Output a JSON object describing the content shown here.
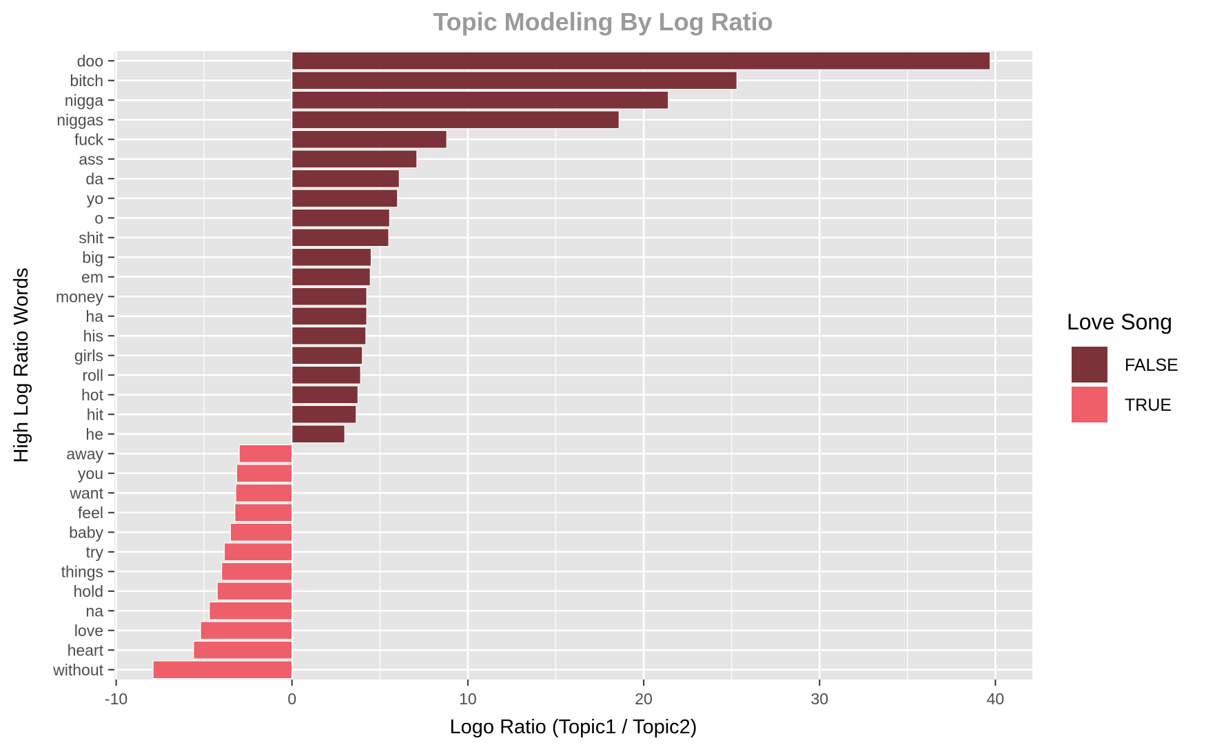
{
  "chart_data": {
    "type": "bar",
    "orientation": "horizontal",
    "title": "Topic Modeling By Log Ratio",
    "xlabel": "Logo Ratio (Topic1 / Topic2)",
    "ylabel": "High Log Ratio Words",
    "xlim": [
      -10.1,
      42.1
    ],
    "xticks": [
      -10,
      0,
      10,
      20,
      30,
      40
    ],
    "xtick_labels": [
      "-10",
      "0",
      "10",
      "20",
      "30",
      "40"
    ],
    "grid": true,
    "legend": {
      "title": "Love Song",
      "position": "right",
      "entries": [
        {
          "label": "FALSE",
          "color": "#7b3339"
        },
        {
          "label": "TRUE",
          "color": "#ee5f69"
        }
      ]
    },
    "categories": [
      "doo",
      "bitch",
      "nigga",
      "niggas",
      "fuck",
      "ass",
      "da",
      "yo",
      "o",
      "shit",
      "big",
      "em",
      "money",
      "ha",
      "his",
      "girls",
      "roll",
      "hot",
      "hit",
      "he",
      "away",
      "you",
      "want",
      "feel",
      "baby",
      "try",
      "things",
      "hold",
      "na",
      "love",
      "heart",
      "without"
    ],
    "values": [
      39.7,
      25.3,
      21.4,
      18.6,
      8.8,
      7.1,
      6.1,
      6.0,
      5.55,
      5.5,
      4.5,
      4.45,
      4.25,
      4.25,
      4.2,
      4.0,
      3.9,
      3.75,
      3.65,
      3.0,
      -3.0,
      -3.15,
      -3.2,
      -3.25,
      -3.5,
      -3.85,
      -4.0,
      -4.25,
      -4.7,
      -5.2,
      -5.6,
      -7.9
    ],
    "love_song": [
      false,
      false,
      false,
      false,
      false,
      false,
      false,
      false,
      false,
      false,
      false,
      false,
      false,
      false,
      false,
      false,
      false,
      false,
      false,
      false,
      true,
      true,
      true,
      true,
      true,
      true,
      true,
      true,
      true,
      true,
      true,
      true
    ]
  },
  "colors": {
    "panel_background": "#e5e5e5",
    "grid": "#ffffff",
    "false_bar": "#7b3339",
    "true_bar": "#ee5f69"
  }
}
